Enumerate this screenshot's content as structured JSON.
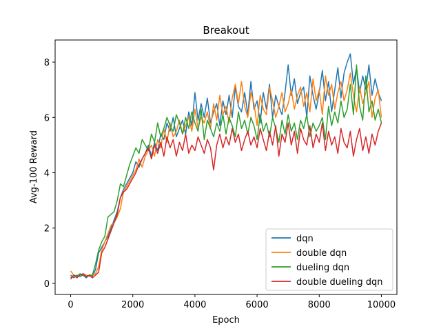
{
  "chart_data": {
    "type": "line",
    "title": "Breakout",
    "xlabel": "Epoch",
    "ylabel": "Avg-100 Reward",
    "xlim": [
      -500,
      10500
    ],
    "ylim": [
      -0.4,
      8.8
    ],
    "xticks": [
      0,
      2000,
      4000,
      6000,
      8000,
      10000
    ],
    "yticks": [
      0,
      2,
      4,
      6,
      8
    ],
    "grid": false,
    "legend_position": "lower-right",
    "x": [
      0,
      100,
      200,
      300,
      400,
      500,
      600,
      700,
      800,
      900,
      1000,
      1100,
      1200,
      1300,
      1400,
      1500,
      1600,
      1700,
      1800,
      1900,
      2000,
      2100,
      2200,
      2300,
      2400,
      2500,
      2600,
      2700,
      2800,
      2900,
      3000,
      3100,
      3200,
      3300,
      3400,
      3500,
      3600,
      3700,
      3800,
      3900,
      4000,
      4100,
      4200,
      4300,
      4400,
      4500,
      4600,
      4700,
      4800,
      4900,
      5000,
      5100,
      5200,
      5300,
      5400,
      5500,
      5600,
      5700,
      5800,
      5900,
      6000,
      6100,
      6200,
      6300,
      6400,
      6500,
      6600,
      6700,
      6800,
      6900,
      7000,
      7100,
      7200,
      7300,
      7400,
      7500,
      7600,
      7700,
      7800,
      7900,
      8000,
      8100,
      8200,
      8300,
      8400,
      8500,
      8600,
      8700,
      8800,
      8900,
      9000,
      9100,
      9200,
      9300,
      9400,
      9500,
      9600,
      9700,
      9800,
      9900,
      10000
    ],
    "series": [
      {
        "name": "dqn",
        "color": "#1f77b4",
        "values": [
          0.3,
          0.2,
          0.3,
          0.25,
          0.3,
          0.2,
          0.3,
          0.25,
          0.5,
          1.1,
          1.3,
          1.5,
          1.7,
          2.0,
          2.3,
          2.6,
          3.1,
          3.4,
          3.6,
          3.8,
          4.0,
          4.4,
          4.2,
          4.5,
          4.7,
          5.0,
          4.6,
          5.1,
          4.8,
          5.4,
          5.2,
          5.8,
          5.5,
          6.0,
          5.3,
          5.6,
          5.9,
          5.4,
          6.2,
          5.7,
          6.9,
          5.9,
          6.5,
          6.0,
          6.7,
          5.8,
          6.2,
          6.5,
          5.7,
          6.6,
          6.1,
          6.8,
          6.0,
          7.1,
          6.4,
          6.2,
          6.9,
          6.1,
          7.3,
          6.3,
          6.6,
          5.8,
          6.9,
          6.3,
          7.2,
          6.0,
          6.8,
          6.4,
          6.1,
          6.9,
          7.9,
          6.8,
          7.4,
          6.5,
          6.9,
          7.1,
          6.0,
          7.5,
          6.8,
          6.3,
          6.9,
          7.7,
          6.6,
          7.3,
          6.2,
          7.0,
          7.8,
          6.7,
          7.6,
          8.0,
          8.3,
          7.2,
          7.8,
          6.9,
          7.5,
          7.0,
          7.9,
          6.8,
          7.4,
          6.9,
          6.6
        ]
      },
      {
        "name": "double dqn",
        "color": "#ff7f0e",
        "values": [
          0.45,
          0.3,
          0.25,
          0.3,
          0.35,
          0.3,
          0.25,
          0.3,
          0.35,
          0.6,
          1.2,
          1.5,
          1.8,
          2.1,
          2.2,
          2.4,
          2.7,
          3.3,
          3.5,
          3.7,
          3.9,
          4.1,
          4.5,
          4.2,
          4.6,
          4.8,
          5.0,
          4.6,
          5.2,
          4.9,
          5.6,
          5.1,
          5.8,
          5.3,
          5.5,
          5.9,
          5.4,
          5.7,
          6.0,
          5.5,
          6.3,
          5.6,
          6.0,
          5.8,
          6.2,
          5.6,
          6.5,
          5.9,
          6.8,
          6.1,
          6.4,
          5.8,
          6.7,
          7.2,
          6.5,
          7.3,
          6.4,
          6.0,
          6.9,
          6.5,
          5.7,
          6.8,
          6.3,
          6.1,
          7.1,
          6.6,
          6.0,
          6.4,
          6.9,
          6.2,
          6.5,
          7.0,
          6.3,
          6.8,
          7.1,
          6.4,
          6.9,
          6.2,
          7.4,
          6.6,
          7.0,
          6.1,
          7.5,
          6.8,
          7.2,
          6.3,
          6.9,
          7.3,
          6.6,
          7.0,
          7.6,
          6.8,
          6.2,
          7.1,
          6.5,
          6.9,
          7.3,
          6.0,
          6.7,
          7.0,
          6.0
        ]
      },
      {
        "name": "dueling dqn",
        "color": "#2ca02c",
        "values": [
          0.2,
          0.3,
          0.25,
          0.35,
          0.3,
          0.25,
          0.3,
          0.3,
          0.7,
          1.2,
          1.5,
          1.7,
          2.4,
          2.5,
          2.6,
          3.0,
          3.6,
          3.5,
          3.9,
          4.3,
          4.6,
          4.9,
          4.7,
          5.2,
          5.0,
          4.8,
          5.4,
          5.1,
          5.8,
          5.3,
          5.6,
          6.0,
          5.7,
          5.5,
          6.1,
          5.8,
          5.4,
          6.0,
          5.6,
          6.2,
          5.8,
          5.5,
          6.3,
          5.2,
          5.9,
          5.6,
          5.3,
          5.8,
          5.5,
          6.1,
          5.4,
          6.0,
          5.7,
          5.3,
          6.2,
          5.6,
          5.9,
          5.4,
          6.0,
          5.7,
          5.2,
          6.1,
          5.5,
          5.8,
          5.3,
          6.0,
          5.6,
          5.1,
          5.9,
          5.4,
          6.1,
          5.5,
          5.8,
          5.2,
          5.9,
          5.6,
          6.1,
          5.3,
          5.8,
          5.5,
          5.7,
          6.0,
          5.2,
          6.4,
          5.7,
          6.2,
          5.8,
          6.6,
          6.0,
          6.3,
          7.2,
          6.1,
          7.9,
          6.4,
          5.9,
          7.5,
          6.2,
          6.6,
          5.9,
          6.3,
          5.8
        ]
      },
      {
        "name": "double dueling dqn",
        "color": "#d62728",
        "values": [
          0.15,
          0.3,
          0.2,
          0.3,
          0.35,
          0.25,
          0.3,
          0.2,
          0.3,
          0.4,
          1.1,
          1.3,
          1.6,
          1.9,
          2.2,
          2.5,
          3.1,
          3.3,
          3.4,
          3.6,
          3.8,
          4.0,
          4.3,
          4.5,
          4.7,
          4.9,
          4.5,
          5.0,
          4.7,
          5.1,
          4.6,
          5.3,
          4.9,
          5.2,
          4.6,
          5.1,
          4.8,
          5.4,
          4.7,
          5.0,
          4.8,
          5.3,
          5.0,
          4.7,
          5.2,
          4.9,
          4.1,
          5.0,
          5.4,
          4.9,
          5.3,
          5.0,
          5.6,
          5.1,
          5.4,
          4.8,
          5.2,
          5.5,
          5.0,
          5.3,
          4.9,
          5.6,
          5.2,
          4.8,
          5.5,
          5.0,
          5.7,
          4.6,
          5.4,
          5.1,
          5.8,
          5.0,
          5.5,
          4.7,
          5.6,
          5.2,
          5.0,
          5.7,
          4.9,
          5.4,
          5.1,
          5.8,
          4.8,
          5.5,
          5.0,
          5.3,
          4.7,
          5.6,
          5.1,
          4.9,
          5.5,
          4.6,
          5.2,
          5.6,
          4.8,
          5.3,
          4.7,
          5.4,
          5.0,
          5.5,
          5.8
        ]
      }
    ]
  }
}
